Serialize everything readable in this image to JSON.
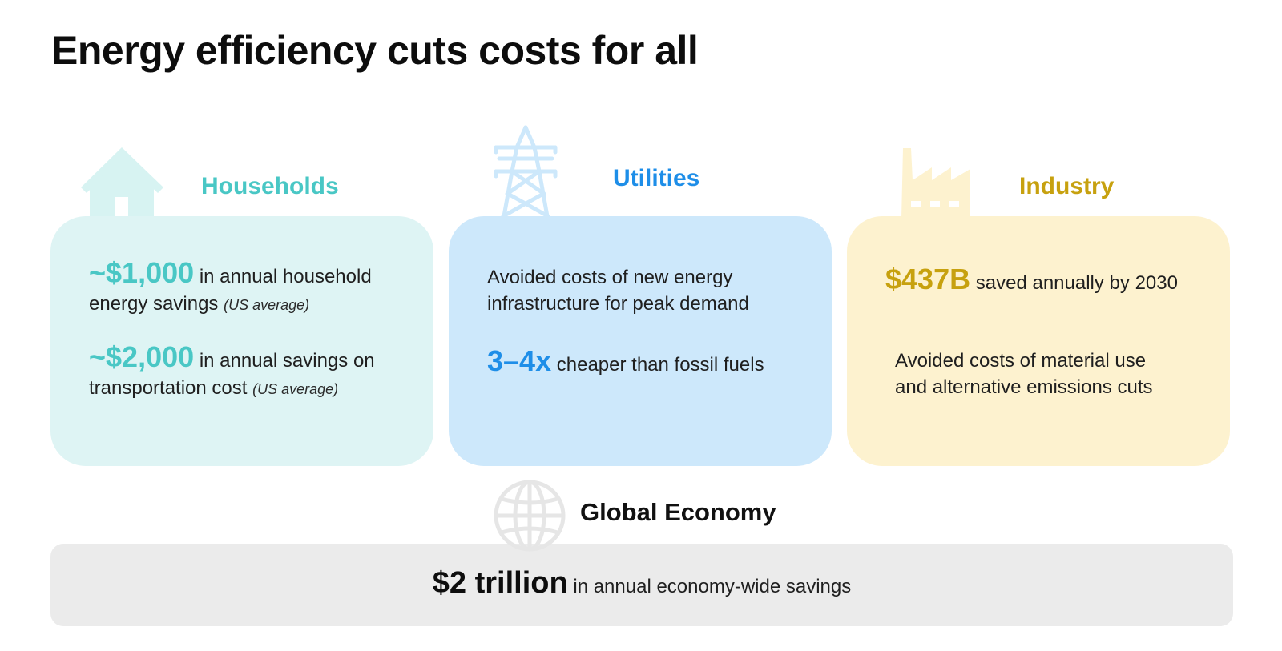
{
  "title": "Energy efficiency cuts costs for all",
  "colors": {
    "households_accent": "#49c7c5",
    "households_bg": "#def4f4",
    "utilities_accent": "#1e8ee8",
    "utilities_bg": "#cde8fb",
    "industry_accent": "#c7a10f",
    "industry_bg": "#fdf2cf",
    "economy_bg": "#ebebeb"
  },
  "households": {
    "icon": "house-icon",
    "label": "Households",
    "stat1_value": "~$1,000",
    "stat1_text": "in annual household",
    "stat1_text2": "energy savings",
    "stat1_note": "(US average)",
    "stat2_value": "~$2,000",
    "stat2_text": "in annual savings on",
    "stat2_text2": "transportation cost",
    "stat2_note": "(US average)"
  },
  "utilities": {
    "icon": "power-tower-icon",
    "label": "Utilities",
    "line1": "Avoided costs of new energy",
    "line2": "infrastructure for peak demand",
    "stat_value": "3–4x",
    "stat_text": "cheaper than fossil fuels"
  },
  "industry": {
    "icon": "factory-icon",
    "label": "Industry",
    "stat_value": "$437B",
    "stat_text": "saved annually by 2030",
    "line1": "Avoided costs of material use",
    "line2": "and alternative emissions cuts"
  },
  "economy": {
    "icon": "globe-icon",
    "label": "Global Economy",
    "stat_value": "$2 trillion",
    "stat_text": "in annual economy-wide savings"
  }
}
